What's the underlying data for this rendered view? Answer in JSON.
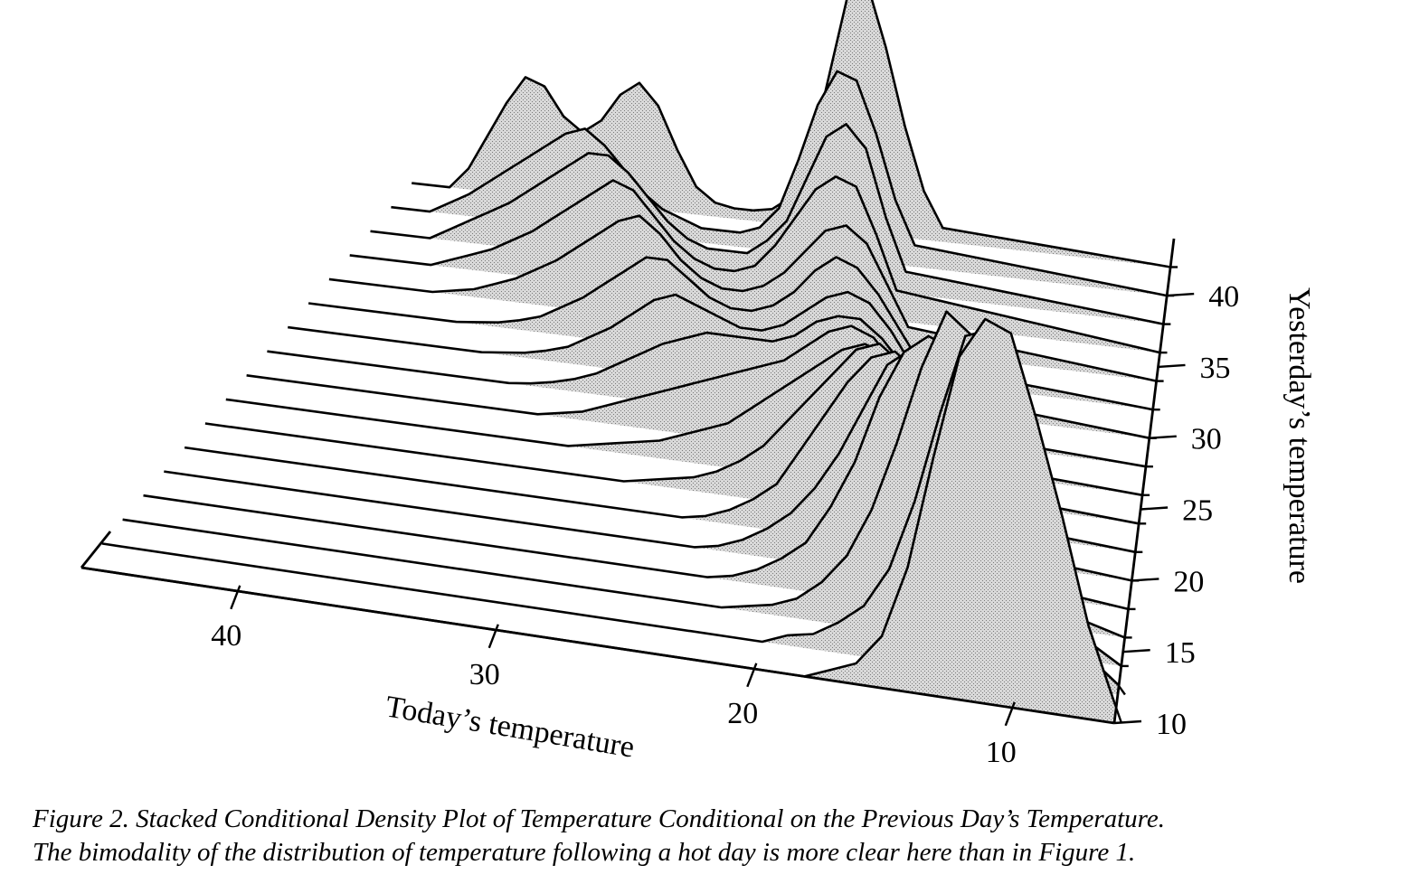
{
  "chart_data": {
    "type": "area",
    "subtype": "stacked conditional density (3-D ridge plot)",
    "xlabel": "Today’s temperature",
    "ylabel": "Yesterday’s temperature",
    "x_ticks": [
      "10",
      "20",
      "30",
      "40"
    ],
    "y_ticks": [
      "10",
      "15",
      "20",
      "25",
      "30",
      "35",
      "40"
    ],
    "xlim": [
      6,
      46
    ],
    "ylim": [
      10,
      44
    ],
    "fill": "stippled light grey",
    "series": [
      {
        "yesterday": 10,
        "x": [
          6,
          7,
          8,
          9,
          10,
          11,
          12,
          13,
          14,
          15,
          16,
          17,
          18
        ],
        "density": [
          0.02,
          0.09,
          0.19,
          0.28,
          0.36,
          0.37,
          0.33,
          0.23,
          0.12,
          0.05,
          0.02,
          0.01,
          0
        ]
      },
      {
        "yesterday": 12,
        "x": [
          6,
          7,
          8,
          9,
          10,
          11,
          12,
          13,
          14,
          15,
          16,
          17,
          18,
          19,
          20
        ],
        "density": [
          0.01,
          0.03,
          0.1,
          0.2,
          0.28,
          0.34,
          0.33,
          0.25,
          0.16,
          0.09,
          0.05,
          0.03,
          0.015,
          0.01,
          0
        ]
      },
      {
        "yesterday": 14,
        "x": [
          6,
          8,
          9,
          10,
          11,
          12,
          13,
          14,
          15,
          16,
          17,
          18,
          19,
          20,
          21,
          22
        ],
        "density": [
          0,
          0.03,
          0.1,
          0.18,
          0.25,
          0.31,
          0.33,
          0.27,
          0.19,
          0.12,
          0.07,
          0.04,
          0.02,
          0.01,
          0.005,
          0
        ]
      },
      {
        "yesterday": 16,
        "x": [
          6,
          9,
          10,
          11,
          12,
          13,
          14,
          15,
          16,
          17,
          18,
          19,
          20,
          21,
          22,
          23
        ],
        "density": [
          0,
          0.02,
          0.07,
          0.14,
          0.21,
          0.27,
          0.28,
          0.26,
          0.21,
          0.14,
          0.09,
          0.05,
          0.03,
          0.015,
          0.005,
          0
        ]
      },
      {
        "yesterday": 18,
        "x": [
          6,
          10,
          11,
          12,
          13,
          14,
          15,
          16,
          17,
          18,
          19,
          20,
          21,
          22,
          23,
          24
        ],
        "density": [
          0,
          0.01,
          0.04,
          0.09,
          0.16,
          0.22,
          0.24,
          0.22,
          0.17,
          0.12,
          0.08,
          0.05,
          0.03,
          0.015,
          0.005,
          0
        ]
      },
      {
        "yesterday": 20,
        "x": [
          6,
          11,
          12,
          13,
          14,
          15,
          16,
          17,
          18,
          19,
          20,
          21,
          22,
          23,
          24,
          25
        ],
        "density": [
          0,
          0.01,
          0.03,
          0.07,
          0.13,
          0.19,
          0.21,
          0.2,
          0.17,
          0.13,
          0.09,
          0.05,
          0.03,
          0.015,
          0.005,
          0
        ]
      },
      {
        "yesterday": 22,
        "x": [
          6,
          12,
          13,
          14,
          15,
          16,
          17,
          18,
          19,
          20,
          21,
          22,
          23,
          24,
          25,
          26,
          27,
          28
        ],
        "density": [
          0,
          0.01,
          0.03,
          0.07,
          0.12,
          0.17,
          0.19,
          0.18,
          0.15,
          0.12,
          0.09,
          0.06,
          0.04,
          0.025,
          0.015,
          0.01,
          0.005,
          0
        ]
      },
      {
        "yesterday": 24,
        "x": [
          6,
          13,
          14,
          15,
          16,
          17,
          18,
          19,
          20,
          21,
          22,
          23,
          24,
          25,
          26,
          27,
          28,
          29,
          30,
          31
        ],
        "density": [
          0,
          0.01,
          0.03,
          0.07,
          0.12,
          0.15,
          0.16,
          0.15,
          0.13,
          0.11,
          0.09,
          0.07,
          0.05,
          0.04,
          0.03,
          0.02,
          0.015,
          0.01,
          0.005,
          0
        ]
      },
      {
        "yesterday": 26,
        "x": [
          6,
          14,
          15,
          16,
          17,
          18,
          19,
          20,
          21,
          22,
          23,
          24,
          25,
          26,
          27,
          28,
          29,
          30,
          31,
          32,
          33
        ],
        "density": [
          0,
          0.01,
          0.03,
          0.07,
          0.11,
          0.14,
          0.15,
          0.14,
          0.12,
          0.1,
          0.09,
          0.08,
          0.07,
          0.06,
          0.05,
          0.04,
          0.03,
          0.02,
          0.01,
          0.005,
          0
        ]
      },
      {
        "yesterday": 28,
        "x": [
          6,
          15,
          16,
          17,
          18,
          19,
          20,
          21,
          22,
          23,
          24,
          25,
          26,
          27,
          28,
          29,
          30,
          31,
          32,
          33,
          34,
          35
        ],
        "density": [
          0,
          0.01,
          0.04,
          0.08,
          0.11,
          0.13,
          0.13,
          0.12,
          0.1,
          0.09,
          0.09,
          0.09,
          0.09,
          0.08,
          0.07,
          0.055,
          0.04,
          0.025,
          0.015,
          0.008,
          0.003,
          0
        ]
      },
      {
        "yesterday": 30,
        "x": [
          6,
          16,
          17,
          18,
          19,
          20,
          21,
          22,
          23,
          24,
          25,
          26,
          27,
          28,
          29,
          30,
          31,
          32,
          33,
          34,
          35,
          36,
          37
        ],
        "density": [
          0,
          0.02,
          0.05,
          0.09,
          0.12,
          0.13,
          0.12,
          0.1,
          0.08,
          0.07,
          0.07,
          0.08,
          0.09,
          0.1,
          0.09,
          0.07,
          0.05,
          0.035,
          0.02,
          0.012,
          0.006,
          0.003,
          0
        ]
      },
      {
        "yesterday": 32,
        "x": [
          6,
          17,
          18,
          19,
          20,
          21,
          22,
          23,
          24,
          25,
          26,
          27,
          28,
          29,
          30,
          31,
          32,
          33,
          34,
          35,
          36,
          37,
          38,
          39
        ],
        "density": [
          0,
          0.02,
          0.06,
          0.1,
          0.13,
          0.14,
          0.12,
          0.09,
          0.07,
          0.06,
          0.06,
          0.07,
          0.09,
          0.11,
          0.11,
          0.09,
          0.07,
          0.05,
          0.035,
          0.02,
          0.012,
          0.006,
          0.003,
          0
        ]
      },
      {
        "yesterday": 34,
        "x": [
          6,
          18,
          19,
          20,
          21,
          22,
          23,
          24,
          25,
          26,
          27,
          28,
          29,
          30,
          31,
          32,
          33,
          34,
          35,
          36,
          37,
          38,
          39,
          40,
          41
        ],
        "density": [
          0,
          0.03,
          0.08,
          0.13,
          0.15,
          0.14,
          0.11,
          0.08,
          0.06,
          0.05,
          0.05,
          0.06,
          0.08,
          0.11,
          0.13,
          0.12,
          0.1,
          0.08,
          0.06,
          0.045,
          0.03,
          0.02,
          0.01,
          0.005,
          0
        ]
      },
      {
        "yesterday": 36,
        "x": [
          6,
          19,
          20,
          21,
          22,
          23,
          24,
          25,
          26,
          27,
          28,
          29,
          30,
          31,
          32,
          33,
          34,
          35,
          36,
          37,
          38,
          39,
          40,
          41,
          42
        ],
        "density": [
          0,
          0.04,
          0.11,
          0.17,
          0.18,
          0.16,
          0.12,
          0.08,
          0.05,
          0.04,
          0.04,
          0.05,
          0.07,
          0.1,
          0.13,
          0.14,
          0.12,
          0.1,
          0.08,
          0.06,
          0.045,
          0.03,
          0.02,
          0.01,
          0
        ]
      },
      {
        "yesterday": 38,
        "x": [
          6,
          19,
          20,
          21,
          22,
          23,
          24,
          25,
          26,
          27,
          28,
          29,
          30,
          31,
          32,
          33,
          34,
          35,
          36,
          37,
          38,
          39,
          40,
          41,
          42,
          43
        ],
        "density": [
          0,
          0.03,
          0.1,
          0.19,
          0.22,
          0.2,
          0.14,
          0.08,
          0.05,
          0.03,
          0.03,
          0.03,
          0.04,
          0.06,
          0.09,
          0.12,
          0.14,
          0.14,
          0.12,
          0.1,
          0.08,
          0.06,
          0.045,
          0.03,
          0.015,
          0
        ]
      },
      {
        "yesterday": 40,
        "x": [
          6,
          19,
          20,
          21,
          22,
          23,
          24,
          25,
          26,
          27,
          28,
          29,
          30,
          31,
          32,
          33,
          34,
          35,
          36,
          37,
          38,
          39,
          40,
          41,
          42,
          43,
          44
        ],
        "density": [
          0,
          0.03,
          0.09,
          0.18,
          0.25,
          0.26,
          0.21,
          0.13,
          0.06,
          0.03,
          0.02,
          0.02,
          0.02,
          0.03,
          0.04,
          0.06,
          0.09,
          0.12,
          0.14,
          0.13,
          0.11,
          0.09,
          0.07,
          0.05,
          0.03,
          0.015,
          0
        ]
      },
      {
        "yesterday": 42,
        "x": [
          6,
          18,
          19,
          20,
          21,
          22,
          23,
          24,
          25,
          26,
          27,
          28,
          29,
          30,
          31,
          32,
          33,
          34,
          35,
          36,
          37,
          38,
          39,
          40,
          41,
          42,
          43,
          44
        ],
        "density": [
          0,
          0.02,
          0.07,
          0.16,
          0.27,
          0.36,
          0.34,
          0.22,
          0.1,
          0.04,
          0.02,
          0.015,
          0.015,
          0.02,
          0.04,
          0.09,
          0.15,
          0.18,
          0.16,
          0.12,
          0.1,
          0.12,
          0.16,
          0.17,
          0.13,
          0.08,
          0.03,
          0
        ]
      }
    ]
  },
  "caption": {
    "line1": "Figure 2.  Stacked Conditional Density Plot of Temperature Conditional on the Previous Day’s Temperature.",
    "line2": "The bimodality of the distribution of temperature following a hot day is more clear here than in Figure 1."
  }
}
